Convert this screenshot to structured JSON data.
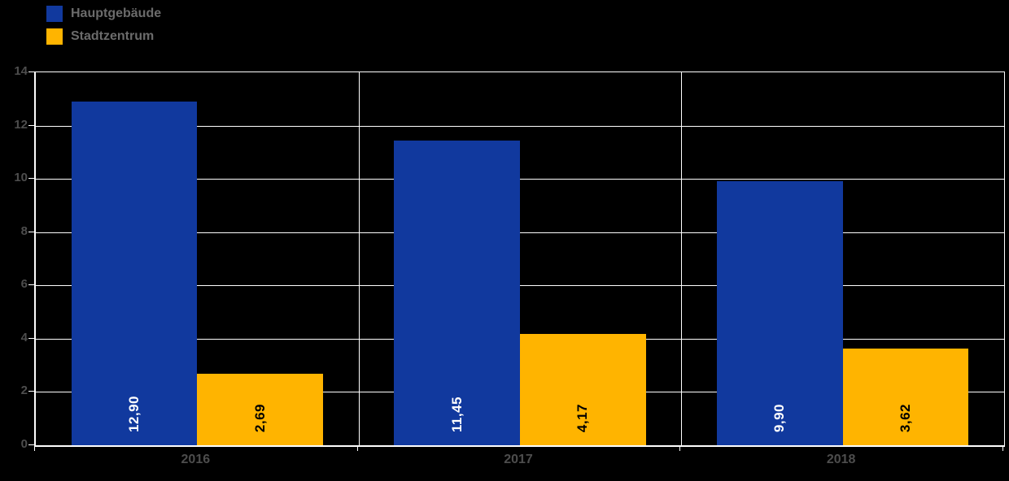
{
  "chart_data": {
    "type": "bar",
    "title": "",
    "xlabel": "",
    "ylabel": "",
    "categories": [
      "2016",
      "2017",
      "2018"
    ],
    "series": [
      {
        "name": "Hauptgebäude",
        "color": "#11399E",
        "values": [
          12.9,
          11.45,
          9.9
        ],
        "value_labels": [
          "12,90",
          "11,45",
          "9,90"
        ],
        "label_color": "#ffffff"
      },
      {
        "name": "Stadtzentrum",
        "color": "#FFB400",
        "values": [
          2.69,
          4.17,
          3.62
        ],
        "value_labels": [
          "2,69",
          "4,17",
          "3,62"
        ],
        "label_color": "#000000"
      }
    ],
    "ylim": [
      0,
      14
    ],
    "yticks": [
      0,
      2,
      4,
      6,
      8,
      10,
      12,
      14
    ],
    "grid": true,
    "legend_position": "top-left",
    "background_color": "#000000",
    "grid_color": "#ffffff",
    "axis_text_color": "#4d4d4d"
  }
}
